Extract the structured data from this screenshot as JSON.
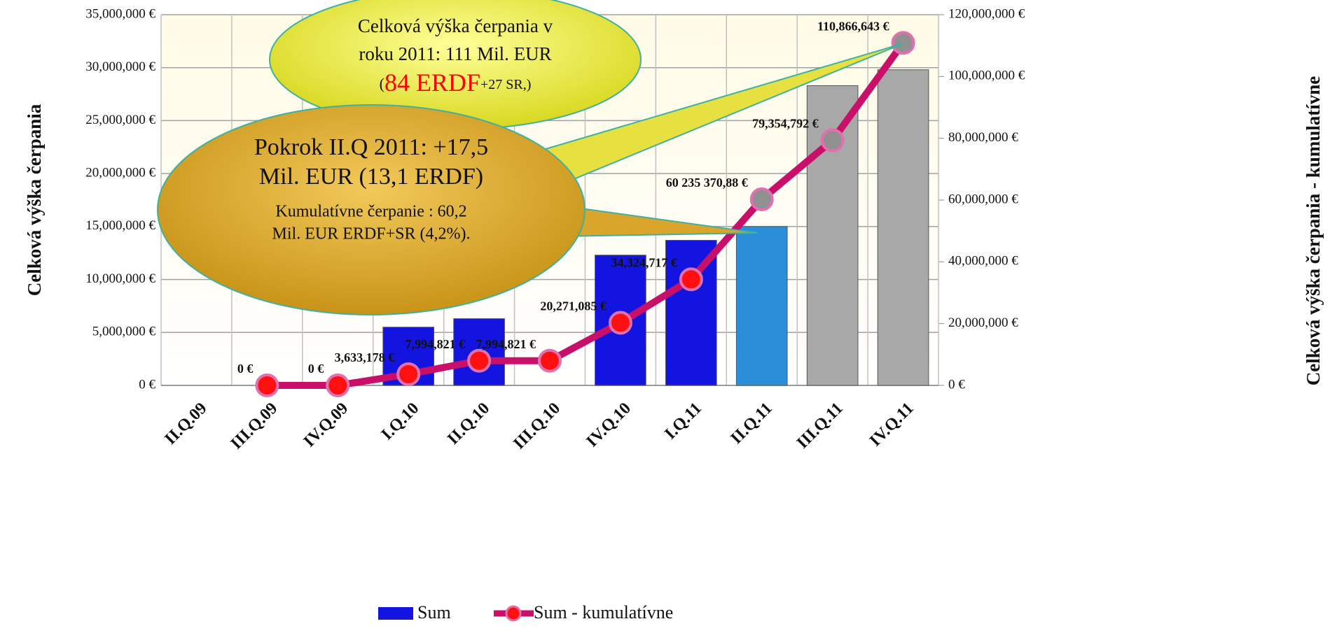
{
  "chart_data": {
    "type": "bar_line",
    "y_label": "Celková výška čerpania",
    "y2_label": "Celková výška čerpania - kumulatívne",
    "categories": [
      "II.Q.09",
      "III.Q.09",
      "IV.Q.09",
      "I.Q.10",
      "II.Q.10",
      "III.Q.10",
      "IV.Q.10",
      "I.Q.11",
      "II.Q.11",
      "III.Q.11",
      "IV.Q.11"
    ],
    "series": [
      {
        "name": "Sum",
        "type": "bar",
        "axis": "y",
        "values": [
          null,
          0,
          0,
          5500000,
          6300000,
          0,
          12300000,
          13700000,
          15000000,
          28300000,
          29800000
        ],
        "colors": [
          "#1414e0",
          "#1414e0",
          "#1414e0",
          "#1414e0",
          "#1414e0",
          "#1414e0",
          "#1414e0",
          "#1414e0",
          "#2a8fd8",
          "#a8a8a8",
          "#a8a8a8"
        ]
      },
      {
        "name": "Sum -   kumulatívne",
        "type": "line",
        "axis": "y2",
        "color": "#c8106a",
        "values": [
          null,
          0,
          0,
          3633178,
          7994821,
          7994821,
          20271085,
          34324717,
          60235370.88,
          79354792,
          110866643
        ],
        "value_labels": [
          null,
          "0 €",
          "0 €",
          "3,633,178 €",
          "7,994,821 €",
          "7,994,821 €",
          "20,271,085 €",
          "34,324,717 €",
          "60 235 370,88 €",
          "79,354,792 €",
          "110,866,643 €"
        ],
        "marker_colors": [
          "#ff1010",
          "#ff1010",
          "#ff1010",
          "#ff1010",
          "#ff1010",
          "#ff1010",
          "#ff1010",
          "#ff1010",
          "#909090",
          "#909090",
          "#909090"
        ]
      }
    ],
    "ylim": [
      0,
      35000000
    ],
    "yticks": [
      {
        "value": 0,
        "label": "0 €"
      },
      {
        "value": 5000000,
        "label": "5,000,000 €"
      },
      {
        "value": 10000000,
        "label": "10,000,000 €"
      },
      {
        "value": 15000000,
        "label": "15,000,000 €"
      },
      {
        "value": 20000000,
        "label": "20,000,000 €"
      },
      {
        "value": 25000000,
        "label": "25,000,000 €"
      },
      {
        "value": 30000000,
        "label": "30,000,000 €"
      },
      {
        "value": 35000000,
        "label": "35,000,000 €"
      }
    ],
    "y2lim": [
      0,
      120000000
    ],
    "y2ticks": [
      {
        "value": 0,
        "label": "0 €"
      },
      {
        "value": 20000000,
        "label": "20,000,000 €"
      },
      {
        "value": 40000000,
        "label": "40,000,000 €"
      },
      {
        "value": 60000000,
        "label": "60,000,000 €"
      },
      {
        "value": 80000000,
        "label": "80,000,000 €"
      },
      {
        "value": 100000000,
        "label": "100,000,000 €"
      },
      {
        "value": 120000000,
        "label": "120,000,000 €"
      }
    ],
    "grid": true,
    "annotations": [
      {
        "lines": [
          "Celková výška čerpania v",
          "roku 2011: 111 Mil. EUR",
          [
            "(",
            "84 ERDF",
            "+27 SR,)"
          ]
        ]
      },
      {
        "lines": [
          "Pokrok II.Q 2011: +17,5",
          "Mil. EUR   (13,1 ERDF)",
          "Kumulatívne čerpanie : 60,2",
          "Mil. EUR  ERDF+SR (4,2%)."
        ]
      }
    ]
  }
}
